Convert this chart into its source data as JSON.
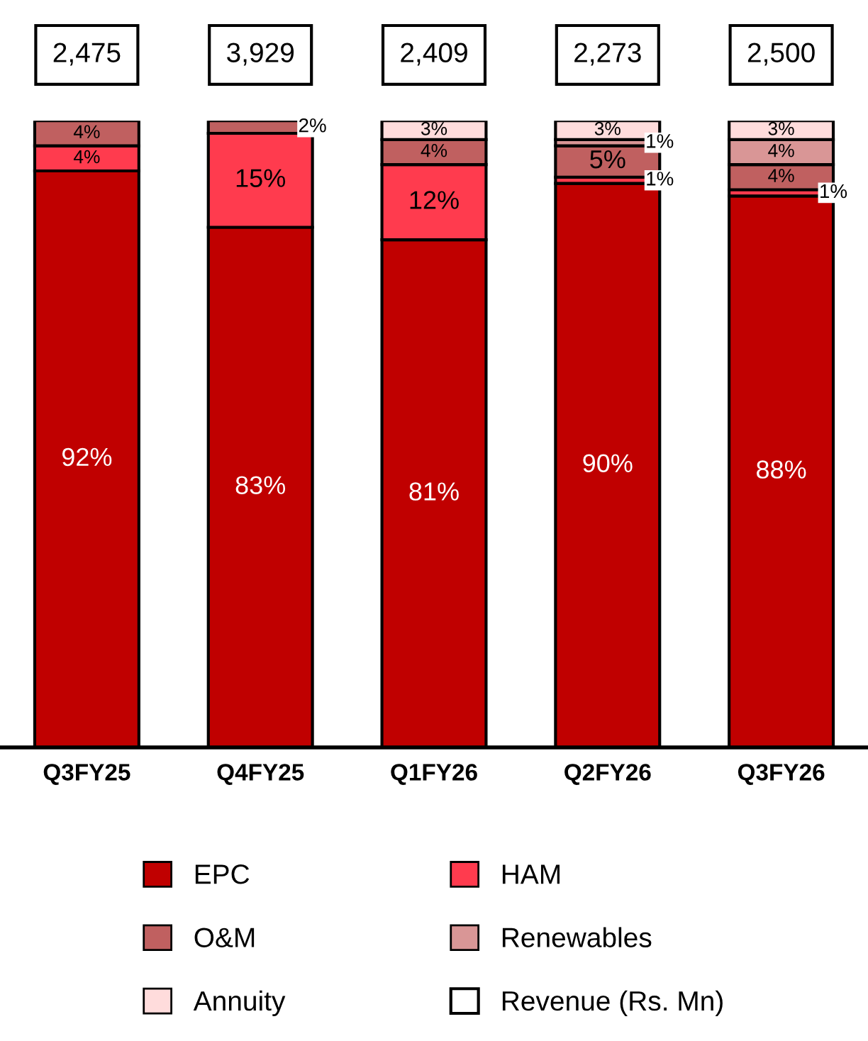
{
  "chart_data": {
    "type": "bar",
    "stacked": true,
    "categories": [
      "Q3FY25",
      "Q4FY25",
      "Q1FY26",
      "Q2FY26",
      "Q3FY26"
    ],
    "series": [
      {
        "name": "EPC",
        "color": "#c00000",
        "values": [
          92,
          83,
          81,
          90,
          88
        ],
        "value_labels": [
          "92%",
          "83%",
          "81%",
          "90%",
          "88%"
        ]
      },
      {
        "name": "HAM",
        "color": "#ff3b4e",
        "values": [
          4,
          15,
          12,
          1,
          1
        ],
        "value_labels": [
          "4%",
          "15%",
          "12%",
          "1%",
          "1%"
        ]
      },
      {
        "name": "O&M",
        "color": "#c06060",
        "values": [
          4,
          2,
          4,
          5,
          4
        ],
        "value_labels": [
          "4%",
          "2%",
          "4%",
          "5%",
          "4%"
        ]
      },
      {
        "name": "Renewables",
        "color": "#d99696",
        "values": [
          null,
          null,
          null,
          1,
          4
        ],
        "value_labels": [
          null,
          null,
          null,
          "1%",
          "4%"
        ]
      },
      {
        "name": "Annuity",
        "color": "#ffdcdc",
        "values": [
          null,
          null,
          3,
          3,
          3
        ],
        "value_labels": [
          null,
          null,
          "3%",
          "3%",
          "3%"
        ]
      }
    ],
    "ylim": [
      0,
      100
    ],
    "tick_labels": "x",
    "annotations": [
      "2,475",
      "3,929",
      "2,409",
      "2,273",
      "2,500",
      "Revenue (Rs. Mn)"
    ],
    "legend": "bottom",
    "grid": false
  }
}
